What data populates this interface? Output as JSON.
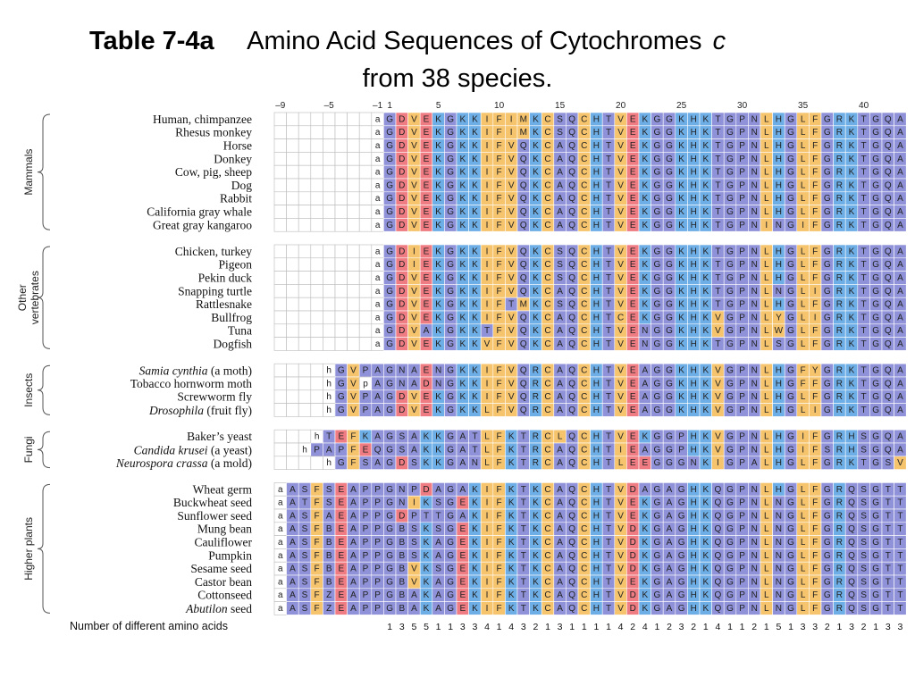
{
  "title": {
    "label": "Table 7-4a",
    "line1": "Amino Acid Sequences of Cytochromes",
    "italic": "c",
    "line2": "from 38 species."
  },
  "positions": [
    {
      "value": -9,
      "label": "–9"
    },
    {
      "value": -5,
      "label": "–5"
    },
    {
      "value": -1,
      "label": "–1"
    },
    1,
    5,
    10,
    15,
    20,
    25,
    30,
    35,
    40
  ],
  "residue_colors": {
    "G": "#8f92d8",
    "A": "#8f92d8",
    "S": "#8f92d8",
    "T": "#8f92d8",
    "N": "#8f92d8",
    "Q": "#8f92d8",
    "P": "#8f92d8",
    "B": "#8f92d8",
    "Z": "#8f92d8",
    "D": "#ef7c82",
    "E": "#ef7c82",
    "K": "#6eaee6",
    "R": "#6eaee6",
    "H": "#6eaee6",
    "V": "#f6c46c",
    "I": "#f6c46c",
    "L": "#f6c46c",
    "F": "#f6c46c",
    "M": "#f6c46c",
    "W": "#f6c46c",
    "Y": "#f6c46c",
    "C": "#f6c46c"
  },
  "groups": [
    {
      "label": [
        "Mammals"
      ],
      "species": [
        {
          "name": "Human, chimpanzee",
          "sequence": "aGDVEKGKKIFIMKCSQCHTVEKGGKHKTGPNLHGLFGRKTGQA"
        },
        {
          "name": "Rhesus monkey",
          "sequence": "aGDVEKGKKIFIMKCSQCHTVEKGGKHKTGPNLHGLFGRKTGQA"
        },
        {
          "name": "Horse",
          "sequence": "aGDVEKGKKIFVQKCAQCHTVEKGGKHKTGPNLHGLFGRKTGQA"
        },
        {
          "name": "Donkey",
          "sequence": "aGDVEKGKKIFVQKCAQCHTVEKGGKHKTGPNLHGLFGRKTGQA"
        },
        {
          "name": "Cow, pig, sheep",
          "sequence": "aGDVEKGKKIFVQKCAQCHTVEKGGKHKTGPNLHGLFGRKTGQA"
        },
        {
          "name": "Dog",
          "sequence": "aGDVEKGKKIFVQKCAQCHTVEKGGKHKTGPNLHGLFGRKTGQA"
        },
        {
          "name": "Rabbit",
          "sequence": "aGDVEKGKKIFVQKCAQCHTVEKGGKHKTGPNLHGLFGRKTGQA"
        },
        {
          "name": "California gray whale",
          "sequence": "aGDVEKGKKIFVQKCAQCHTVEKGGKHKTGPNLHGLFGRKTGQA"
        },
        {
          "name": "Great gray kangaroo",
          "sequence": "aGDVEKGKKIFVQKCAQCHTVEKGGKHKTGPNINGIFGRKTGQA"
        }
      ]
    },
    {
      "label": [
        "Other",
        "vertebrates"
      ],
      "species": [
        {
          "name": "Chicken, turkey",
          "sequence": "aGDIEKGKKIFVQKCSQCHTVEKGGKHKTGPNLHGLFGRKTGQA"
        },
        {
          "name": "Pigeon",
          "sequence": "aGDIEKGKKIFVQKCSQCHTVEKGGKHKTGPNLHGLFGRKTGQA"
        },
        {
          "name": "Pekin duck",
          "sequence": "aGDVEKGKKIFVQKCSQCHTVEKGGKHKTGPNLHGLFGRKTGQA"
        },
        {
          "name": "Snapping turtle",
          "sequence": "aGDVEKGKKIFVQKCAQCHTVEKGGKHKTGPNLNGLIGRKTGQA"
        },
        {
          "name": "Rattlesnake",
          "sequence": "aGDVEKGKKIFTMKCSQCHTVEKGGKHKTGPNLHGLFGRKTGQA"
        },
        {
          "name": "Bullfrog",
          "sequence": "aGDVEKGKKIFVQKCAQCHTCEKGGKHKVGPNLYGLIGRKTGQA"
        },
        {
          "name": "Tuna",
          "sequence": "aGDVAKGKKTFVQKCAQCHTVENGGKHKVGPNLWGLFGRKTGQA"
        },
        {
          "name": "Dogfish",
          "sequence": "aGDVEKGKKVFVQKCAQCHTVENGGKHKTGPNLSGLFGRKTGQA"
        }
      ]
    },
    {
      "label": [
        "Insects"
      ],
      "species": [
        {
          "name": [
            {
              "text": "Samia cynthia",
              "style": "italic"
            },
            {
              "text": " (a moth)"
            }
          ],
          "sequence": "hGVPAGNAENGKKIFVQRCAQCHTVEAGGKHKVGPNLHGFYGRKTGQA"
        },
        {
          "name": "Tobacco hornworm moth",
          "sequence": "hGVpAGNADNGKKIFVQRCAQCHTVEAGGKHKVGPNLHGFFGRKTGQA"
        },
        {
          "name": "Screwworm fly",
          "sequence": "hGVPAGDVEKGKKIFVQRCAQCHTVEAGGKHKVGPNLHGLFGRKTGQA"
        },
        {
          "name": [
            {
              "text": "Drosophila",
              "style": "italic"
            },
            {
              "text": " (fruit fly)"
            }
          ],
          "sequence": "hGVPAGDVEKGKKLFVQRCAQCHTVEAGGKHKVGPNLHGLIGRKTGQA"
        }
      ]
    },
    {
      "label": [
        "Fungi"
      ],
      "species": [
        {
          "name": "Baker’s yeast",
          "sequence": "hTEFKAGSAKKGATLFKTRCLQCHTVEKGGPHKVGPNLHGIFGRHSGQA"
        },
        {
          "name": [
            {
              "text": "Candida krusei",
              "style": "italic"
            },
            {
              "text": " (a yeast)"
            }
          ],
          "sequence": "hPAPFEQGSAKKGATLFKTRCAQCHTIEAGGPHKVGPNLHGIFSRHSGQA"
        },
        {
          "name": [
            {
              "text": "Neurospora crassa",
              "style": "italic"
            },
            {
              "text": " (a mold)"
            }
          ],
          "sequence": "hGFSAGDSKKGANLFKTRCAQCHTLEEGGGNKIGPALHGLFGRKTGSV"
        }
      ]
    },
    {
      "label": [
        "Higher plants"
      ],
      "species": [
        {
          "name": "Wheat germ",
          "sequence": "aASFSEAPPGNPDAGAKIFKTKCAQCHTVDAGAGHKQGPNLHGLFGRQSGTT"
        },
        {
          "name": "Buckwheat seed",
          "sequence": "aATFSEAPPGNIKSGEKIFKTKCAQCHTVEKGAGHKQGPNLNGLFGRQSGTT"
        },
        {
          "name": "Sunflower seed",
          "sequence": "aASFAEAPPGDPTTGAKIFKTKCAQCHTVEKGAGHKQGPNLNGLFGRQSGTT"
        },
        {
          "name": "Mung bean",
          "sequence": "aASFBEAPPGBSKSGEKIFKTKCAQCHTVDKGAGHKQGPNLNGLFGRQSGTT"
        },
        {
          "name": "Cauliflower",
          "sequence": "aASFBEAPPGBSKAGEKIFKTKCAQCHTVDKGAGHKQGPNLNGLFGRQSGTT"
        },
        {
          "name": "Pumpkin",
          "sequence": "aASFBEAPPGBSKAGEKIFKTKCAQCHTVDKGAGHKQGPNLNGLFGRQSGTT"
        },
        {
          "name": "Sesame seed",
          "sequence": "aASFBEAPPGBVKSGEKIFKTKCAQCHTVDKGAGHKQGPNLNGLFGRQSGTT"
        },
        {
          "name": "Castor bean",
          "sequence": "aASFBEAPPGBVKAGEKIFKTKCAQCHTVEKGAGHKQGPNLNGLFGRQSGTT"
        },
        {
          "name": "Cottonseed",
          "sequence": "aASFZEAPPGBAKAGEKIFKTKCAQCHTVDKGAGHKQGPNLNGLFGRQSGTT"
        },
        {
          "name": [
            {
              "text": "Abutilon",
              "style": "italic"
            },
            {
              "text": " seed"
            }
          ],
          "sequence": "aASFZEAPPGBAKAGEKIFKTKCAQCHTVDKGAGHKQGPNLNGLFGRQSGTT"
        }
      ]
    }
  ],
  "footer": {
    "label": "Number of different amino acids",
    "counts": [
      1,
      3,
      5,
      5,
      1,
      1,
      3,
      3,
      4,
      1,
      4,
      3,
      2,
      1,
      3,
      1,
      1,
      1,
      1,
      4,
      2,
      4,
      1,
      2,
      3,
      2,
      1,
      4,
      1,
      1,
      2,
      1,
      5,
      1,
      3,
      3,
      2,
      1,
      3,
      2,
      1,
      3,
      3
    ]
  }
}
